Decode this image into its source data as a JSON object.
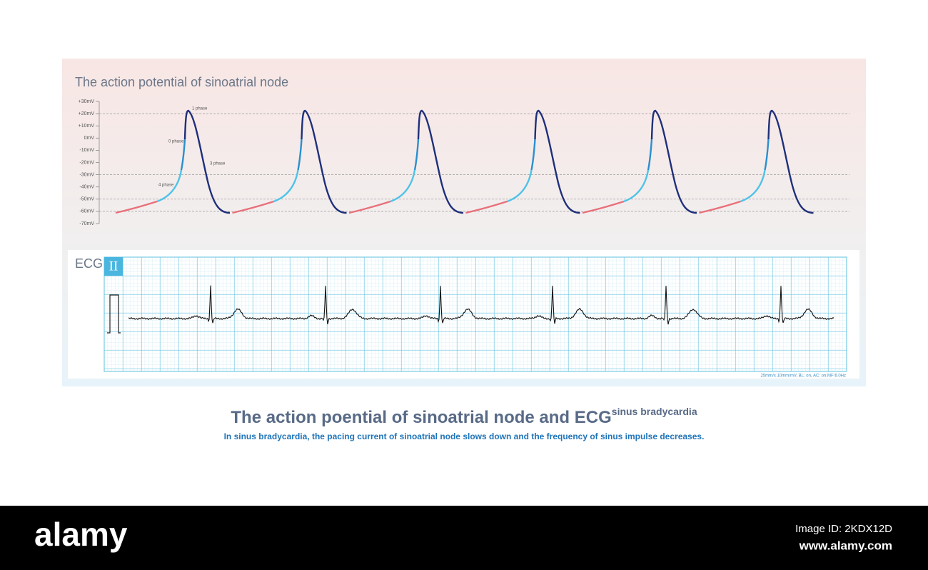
{
  "panel": {
    "title": "The action potential of sinoatrial node",
    "y_labels": [
      "+30mV",
      "+20mV",
      "+10mV",
      "0mV",
      "-10mV",
      "-20mV",
      "-30mV",
      "-40mV",
      "-50mV",
      "-60mV",
      "-70mV"
    ],
    "phase_labels": [
      "1 phase",
      "0 phase",
      "3 phase",
      "4 phase"
    ]
  },
  "ecg": {
    "label": "ECG",
    "lead": "II",
    "settings": "25mm/s  10mm/mV, BL: on, AC: on,MF:6.0Hz"
  },
  "caption": {
    "title": "The action poential of sinoatrial node and ECG",
    "superscript": "sinus bradycardia",
    "subtitle": "In sinus bradycardia, the pacing current of sinoatrial node slows down and the frequency of sinus impulse decreases."
  },
  "footer": {
    "brand": "alamy",
    "image_id": "Image ID: 2KDX12D",
    "url": "www.alamy.com"
  }
}
